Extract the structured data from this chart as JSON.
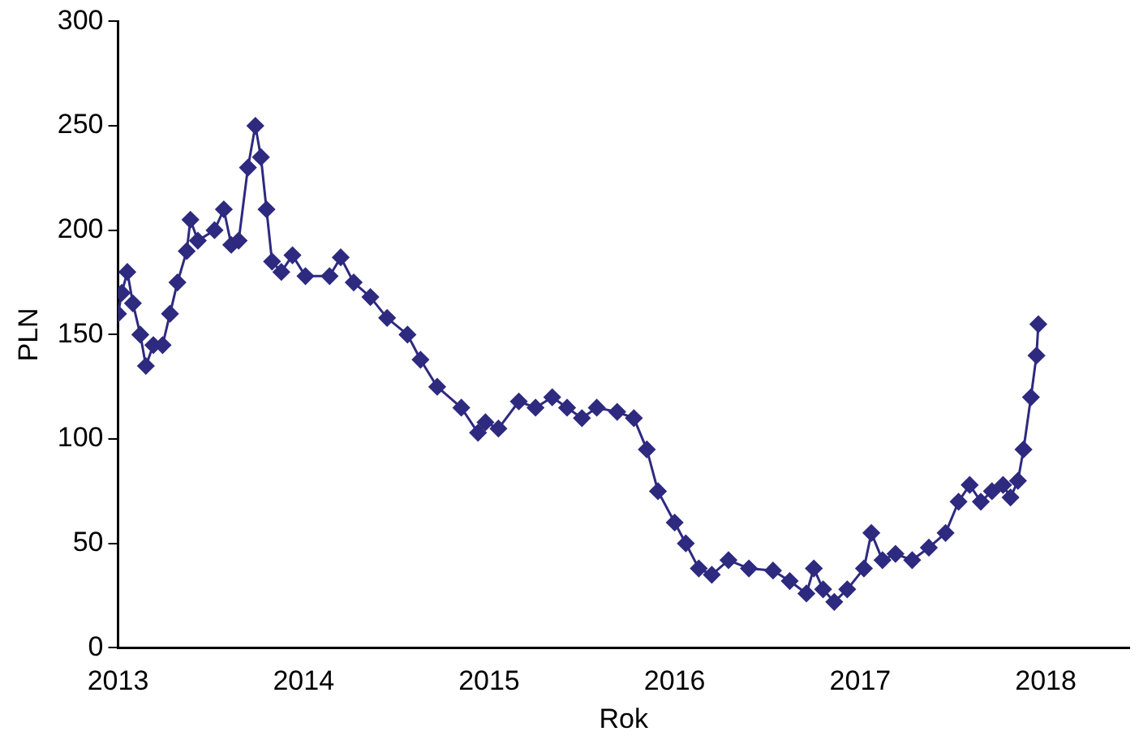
{
  "chart_data": {
    "type": "line",
    "xlabel": "Rok",
    "ylabel": "PLN",
    "marker": "diamond",
    "line_style": "solid",
    "grid": false,
    "legend": false,
    "x": [
      2013.0,
      2013.02,
      2013.05,
      2013.08,
      2013.12,
      2013.15,
      2013.19,
      2013.24,
      2013.28,
      2013.32,
      2013.37,
      2013.39,
      2013.43,
      2013.52,
      2013.57,
      2013.61,
      2013.65,
      2013.7,
      2013.74,
      2013.77,
      2013.8,
      2013.83,
      2013.88,
      2013.94,
      2014.01,
      2014.14,
      2014.2,
      2014.27,
      2014.36,
      2014.45,
      2014.56,
      2014.63,
      2014.72,
      2014.85,
      2014.94,
      2014.98,
      2015.05,
      2015.16,
      2015.25,
      2015.34,
      2015.42,
      2015.5,
      2015.58,
      2015.69,
      2015.78,
      2015.85,
      2015.91,
      2016.0,
      2016.06,
      2016.13,
      2016.2,
      2016.29,
      2016.4,
      2016.53,
      2016.62,
      2016.71,
      2016.75,
      2016.8,
      2016.86,
      2016.93,
      2017.02,
      2017.06,
      2017.12,
      2017.19,
      2017.28,
      2017.37,
      2017.46,
      2017.53,
      2017.59,
      2017.65,
      2017.71,
      2017.77,
      2017.81,
      2017.85,
      2017.88,
      2017.92,
      2017.95,
      2017.96
    ],
    "series": [
      {
        "color": "#2e2a7f",
        "values": [
          160,
          170,
          180,
          165,
          150,
          135,
          145,
          145,
          160,
          175,
          190,
          205,
          195,
          200,
          210,
          193,
          195,
          230,
          250,
          235,
          210,
          185,
          180,
          188,
          178,
          178,
          187,
          175,
          168,
          158,
          150,
          138,
          125,
          115,
          103,
          108,
          105,
          118,
          115,
          120,
          115,
          110,
          115,
          113,
          110,
          95,
          75,
          60,
          50,
          38,
          35,
          42,
          38,
          37,
          32,
          26,
          38,
          28,
          22,
          28,
          38,
          55,
          42,
          45,
          42,
          48,
          55,
          70,
          78,
          70,
          75,
          78,
          72,
          80,
          95,
          120,
          140,
          155
        ]
      }
    ],
    "xlim": [
      2013,
      2018.45
    ],
    "xticks": [
      2013,
      2014,
      2015,
      2016,
      2017,
      2018
    ],
    "ylim": [
      0,
      300
    ],
    "yticks": [
      0,
      50,
      100,
      150,
      200,
      250,
      300
    ]
  }
}
